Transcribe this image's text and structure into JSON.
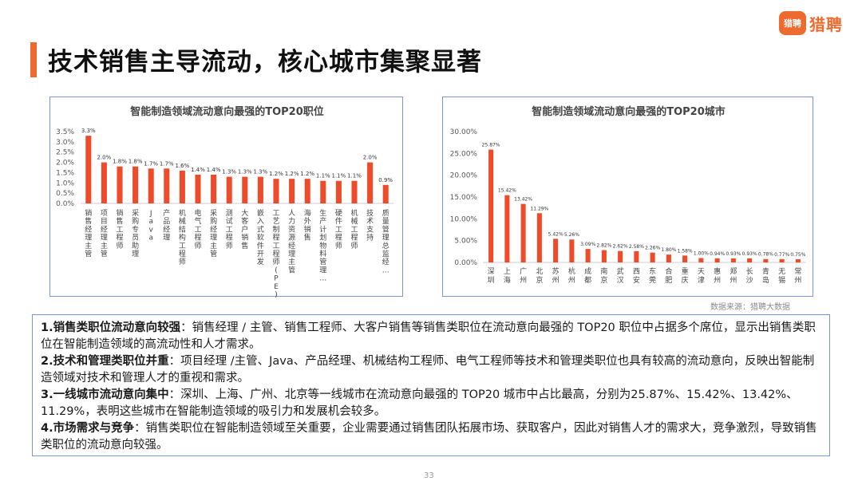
{
  "logo": {
    "badge_text": "猎聘",
    "text": "猎聘"
  },
  "page_title": "技术销售主导流动，核心城市集聚显著",
  "source_note": "数据来源：猎聘大数据",
  "page_number": "33",
  "colors": {
    "accent": "#ee6b2f",
    "bar": "#ee4b2b",
    "box_border": "#7a95d6"
  },
  "summary": [
    {
      "heading": "1.销售类职位流动意向较强",
      "text": "：销售经理 / 主管、销售工程师、大客户销售等销售类职位在流动意向最强的 TOP20 职位中占据多个席位，显示出销售类职位在智能制造领域的高流动性和人才需求。"
    },
    {
      "heading": "2.技术和管理类职位并重",
      "text": "：项目经理 /主管、Java、产品经理、机械结构工程师、电气工程师等技术和管理类职位也具有较高的流动意向，反映出智能制造领域对技术和管理人才的重视和需求。"
    },
    {
      "heading": "3.一线城市流动意向集中",
      "text": "：深圳、上海、广州、北京等一线城市在流动意向最强的 TOP20 城市中占比最高，分别为25.87%、15.42%、13.42%、11.29%，表明这些城市在智能制造领域的吸引力和发展机会较多。"
    },
    {
      "heading": "4.市场需求与竞争",
      "text": "：销售类职位在智能制造领域至关重要，企业需要通过销售团队拓展市场、获取客户，因此对销售人才的需求大，竞争激烈，导致销售类职位的流动意向较强。"
    }
  ],
  "chart_data": [
    {
      "type": "bar",
      "title": "智能制造领域流动意向最强的TOP20职位",
      "categories": [
        "销售经理主管",
        "项目经理主管",
        "销售工程师",
        "采购专员助理",
        "Java",
        "产品经理",
        "机械结构工程师",
        "电气工程师",
        "采购经理主管",
        "测试工程师",
        "大客户销售",
        "嵌入式软件开发",
        "工艺制程工程师(PE)",
        "人力资源经理主管",
        "海外销售",
        "生产计划物料管理…",
        "硬件工程师",
        "机械工程师",
        "技术支持",
        "质量管理总监经…"
      ],
      "values": [
        3.3,
        2.0,
        1.8,
        1.8,
        1.7,
        1.7,
        1.6,
        1.4,
        1.4,
        1.3,
        1.3,
        1.3,
        1.2,
        1.2,
        1.2,
        1.1,
        1.1,
        1.1,
        2.0,
        0.9
      ],
      "data_labels": [
        "3.3%",
        "2.0%",
        "1.8%",
        "1.8%",
        "1.7%",
        "1.7%",
        "1.6%",
        "1.4%",
        "1.4%",
        "1.3%",
        "1.3%",
        "1.3%",
        "1.2%",
        "1.2%",
        "1.2%",
        "1.1%",
        "1.1%",
        "1.1%",
        "2.0%",
        "0.9%"
      ],
      "yticks": [
        "0.0%",
        "0.5%",
        "1.0%",
        "1.5%",
        "2.0%",
        "2.5%",
        "3.0%",
        "3.5%"
      ],
      "ylim": [
        0,
        3.5
      ],
      "grid": false,
      "legend": "none"
    },
    {
      "type": "bar",
      "title": "智能制造领域流动意向最强的TOP20城市",
      "categories": [
        "深圳",
        "上海",
        "广州",
        "北京",
        "苏州",
        "杭州",
        "成都",
        "南京",
        "武汉",
        "西安",
        "东莞",
        "合肥",
        "重庆",
        "天津",
        "惠州",
        "郑州",
        "长沙",
        "青岛",
        "无锡",
        "常州"
      ],
      "values": [
        25.87,
        15.42,
        13.42,
        11.29,
        5.42,
        5.26,
        3.09,
        2.82,
        2.62,
        2.58,
        2.26,
        1.8,
        1.58,
        1.0,
        0.94,
        0.93,
        0.93,
        0.78,
        0.77,
        0.75
      ],
      "data_labels": [
        "25.87%",
        "15.42%",
        "13.42%",
        "11.29%",
        "5.42%",
        "5.26%",
        "3.09%",
        "2.82%",
        "2.62%",
        "2.58%",
        "2.26%",
        "1.80%",
        "1.58%",
        "1.00%",
        "0.94%",
        "0.93%",
        "0.93%",
        "0.78%",
        "0.77%",
        "0.75%"
      ],
      "yticks": [
        "0.00%",
        "5.00%",
        "10.00%",
        "15.00%",
        "20.00%",
        "25.00%",
        "30.00%"
      ],
      "ylim": [
        0,
        30
      ],
      "grid": false,
      "legend": "none"
    }
  ]
}
